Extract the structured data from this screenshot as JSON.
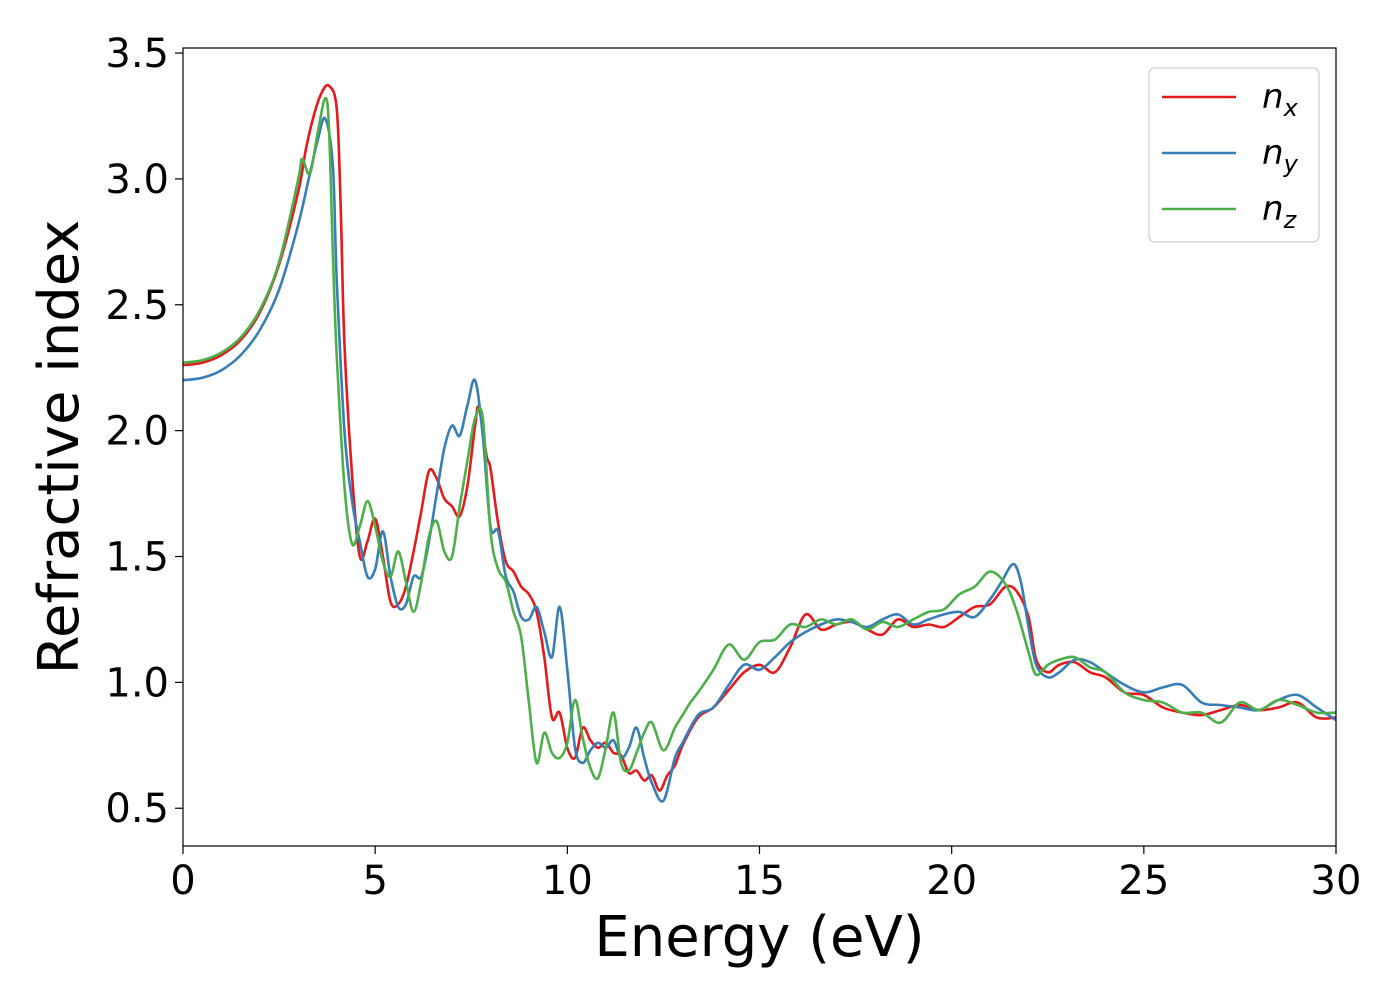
{
  "chart_data": {
    "type": "line",
    "xlabel": "Energy (eV)",
    "ylabel": "Refractive index",
    "xlim": [
      0,
      30
    ],
    "ylim": [
      0.35,
      3.52
    ],
    "xticks": [
      0,
      5,
      10,
      15,
      20,
      25,
      30
    ],
    "yticks": [
      0.5,
      1.0,
      1.5,
      2.0,
      2.5,
      3.0,
      3.5
    ],
    "grid": false,
    "legend_position": "top-right",
    "series": [
      {
        "name": "n",
        "subscript": "x",
        "color": "#e41a1c",
        "x": [
          0,
          0.5,
          1,
          1.5,
          2,
          2.5,
          3,
          3.2,
          3.4,
          3.6,
          3.8,
          4.0,
          4.1,
          4.2,
          4.4,
          4.6,
          4.8,
          5.0,
          5.2,
          5.4,
          5.6,
          5.8,
          6.0,
          6.2,
          6.4,
          6.6,
          6.8,
          7.0,
          7.2,
          7.4,
          7.6,
          7.7,
          7.9,
          8.0,
          8.2,
          8.4,
          8.6,
          8.8,
          9.0,
          9.2,
          9.4,
          9.6,
          9.8,
          10.0,
          10.2,
          10.4,
          10.6,
          10.8,
          11.0,
          11.2,
          11.4,
          11.6,
          11.8,
          12.0,
          12.2,
          12.4,
          12.6,
          12.8,
          13.0,
          13.4,
          13.8,
          14.2,
          14.6,
          15.0,
          15.4,
          15.8,
          16.2,
          16.6,
          17.0,
          17.4,
          17.8,
          18.2,
          18.6,
          19.0,
          19.4,
          19.8,
          20.2,
          20.6,
          21.0,
          21.4,
          21.7,
          22.0,
          22.2,
          22.5,
          22.8,
          23.2,
          23.6,
          24.0,
          24.5,
          25.0,
          25.5,
          26.0,
          26.5,
          27.0,
          27.5,
          28.0,
          28.5,
          29.0,
          29.5,
          30.0
        ],
        "values": [
          2.26,
          2.27,
          2.3,
          2.36,
          2.47,
          2.66,
          2.95,
          3.12,
          3.25,
          3.34,
          3.37,
          3.28,
          2.9,
          2.35,
          1.82,
          1.5,
          1.56,
          1.65,
          1.5,
          1.32,
          1.31,
          1.38,
          1.52,
          1.68,
          1.84,
          1.81,
          1.73,
          1.7,
          1.66,
          1.78,
          2.02,
          2.09,
          1.9,
          1.85,
          1.63,
          1.48,
          1.44,
          1.38,
          1.35,
          1.28,
          1.1,
          0.86,
          0.88,
          0.74,
          0.7,
          0.82,
          0.77,
          0.74,
          0.76,
          0.72,
          0.71,
          0.64,
          0.65,
          0.61,
          0.63,
          0.57,
          0.63,
          0.67,
          0.75,
          0.86,
          0.9,
          0.97,
          1.04,
          1.07,
          1.04,
          1.14,
          1.27,
          1.21,
          1.23,
          1.24,
          1.21,
          1.19,
          1.25,
          1.22,
          1.23,
          1.22,
          1.26,
          1.3,
          1.31,
          1.38,
          1.36,
          1.26,
          1.09,
          1.04,
          1.07,
          1.08,
          1.04,
          1.02,
          0.96,
          0.95,
          0.9,
          0.88,
          0.87,
          0.89,
          0.91,
          0.89,
          0.9,
          0.92,
          0.86,
          0.86
        ]
      },
      {
        "name": "n",
        "subscript": "y",
        "color": "#377eb8",
        "x": [
          0,
          0.5,
          1,
          1.5,
          2,
          2.5,
          3,
          3.3,
          3.5,
          3.7,
          3.9,
          4.0,
          4.2,
          4.4,
          4.6,
          4.8,
          5.0,
          5.2,
          5.4,
          5.6,
          5.8,
          6.0,
          6.2,
          6.4,
          6.6,
          6.8,
          7.0,
          7.2,
          7.4,
          7.6,
          7.8,
          8.0,
          8.2,
          8.4,
          8.6,
          8.8,
          9.0,
          9.2,
          9.4,
          9.6,
          9.8,
          10.0,
          10.2,
          10.4,
          10.6,
          10.8,
          11.0,
          11.2,
          11.4,
          11.6,
          11.8,
          12.0,
          12.2,
          12.5,
          12.8,
          13.0,
          13.4,
          13.8,
          14.2,
          14.6,
          15.0,
          15.4,
          15.8,
          16.2,
          16.6,
          17.0,
          17.4,
          17.8,
          18.2,
          18.6,
          19.0,
          19.4,
          19.8,
          20.2,
          20.6,
          21.0,
          21.3,
          21.6,
          21.8,
          22.0,
          22.2,
          22.5,
          22.8,
          23.2,
          23.6,
          24.0,
          24.5,
          25.0,
          25.5,
          26.0,
          26.5,
          27.0,
          27.5,
          28.0,
          28.5,
          29.0,
          29.5,
          30.0
        ],
        "values": [
          2.2,
          2.21,
          2.24,
          2.3,
          2.4,
          2.56,
          2.82,
          3.02,
          3.15,
          3.24,
          3.05,
          2.6,
          2.0,
          1.72,
          1.56,
          1.42,
          1.45,
          1.6,
          1.42,
          1.3,
          1.31,
          1.42,
          1.42,
          1.56,
          1.75,
          1.93,
          2.02,
          1.98,
          2.1,
          2.2,
          1.98,
          1.62,
          1.6,
          1.42,
          1.36,
          1.26,
          1.25,
          1.3,
          1.2,
          1.1,
          1.3,
          1.05,
          0.74,
          0.68,
          0.73,
          0.76,
          0.74,
          0.77,
          0.7,
          0.74,
          0.82,
          0.7,
          0.6,
          0.53,
          0.7,
          0.76,
          0.87,
          0.9,
          0.99,
          1.07,
          1.05,
          1.1,
          1.16,
          1.2,
          1.23,
          1.25,
          1.24,
          1.22,
          1.25,
          1.27,
          1.23,
          1.25,
          1.27,
          1.28,
          1.26,
          1.33,
          1.4,
          1.47,
          1.4,
          1.22,
          1.07,
          1.02,
          1.04,
          1.09,
          1.08,
          1.04,
          0.99,
          0.96,
          0.98,
          0.99,
          0.92,
          0.91,
          0.9,
          0.89,
          0.93,
          0.95,
          0.9,
          0.85
        ]
      },
      {
        "name": "n",
        "subscript": "z",
        "color": "#4daf4a",
        "x": [
          0,
          0.5,
          1,
          1.5,
          2,
          2.5,
          3,
          3.1,
          3.3,
          3.5,
          3.7,
          3.8,
          3.9,
          4.0,
          4.2,
          4.4,
          4.6,
          4.8,
          5.0,
          5.2,
          5.4,
          5.6,
          5.8,
          6.0,
          6.2,
          6.4,
          6.6,
          6.8,
          7.0,
          7.2,
          7.4,
          7.6,
          7.8,
          8.0,
          8.2,
          8.4,
          8.6,
          8.8,
          9.0,
          9.2,
          9.4,
          9.6,
          9.8,
          10.0,
          10.2,
          10.4,
          10.6,
          10.8,
          11.0,
          11.2,
          11.4,
          11.6,
          11.8,
          12.0,
          12.2,
          12.5,
          12.8,
          13.0,
          13.2,
          13.4,
          13.8,
          14.2,
          14.6,
          15.0,
          15.4,
          15.8,
          16.2,
          16.6,
          17.0,
          17.4,
          17.8,
          18.2,
          18.6,
          19.0,
          19.4,
          19.8,
          20.2,
          20.6,
          21.0,
          21.4,
          21.7,
          22.0,
          22.2,
          22.5,
          22.8,
          23.2,
          23.6,
          24.0,
          24.5,
          25.0,
          25.5,
          26.0,
          26.5,
          27.0,
          27.5,
          28.0,
          28.5,
          29.0,
          29.5,
          30.0
        ],
        "values": [
          2.27,
          2.28,
          2.31,
          2.37,
          2.48,
          2.67,
          3.0,
          3.08,
          3.02,
          3.18,
          3.32,
          3.2,
          2.7,
          2.3,
          1.78,
          1.55,
          1.62,
          1.72,
          1.62,
          1.48,
          1.42,
          1.52,
          1.4,
          1.28,
          1.4,
          1.58,
          1.64,
          1.52,
          1.5,
          1.7,
          1.88,
          2.05,
          2.05,
          1.6,
          1.45,
          1.4,
          1.28,
          1.18,
          0.92,
          0.68,
          0.8,
          0.72,
          0.7,
          0.76,
          0.93,
          0.78,
          0.66,
          0.62,
          0.74,
          0.88,
          0.68,
          0.65,
          0.72,
          0.8,
          0.84,
          0.73,
          0.82,
          0.87,
          0.92,
          0.96,
          1.05,
          1.15,
          1.09,
          1.16,
          1.17,
          1.23,
          1.22,
          1.25,
          1.23,
          1.25,
          1.21,
          1.24,
          1.22,
          1.25,
          1.28,
          1.29,
          1.35,
          1.38,
          1.44,
          1.39,
          1.28,
          1.12,
          1.03,
          1.07,
          1.09,
          1.1,
          1.06,
          1.04,
          0.96,
          0.93,
          0.92,
          0.88,
          0.88,
          0.84,
          0.92,
          0.89,
          0.93,
          0.91,
          0.88,
          0.88
        ]
      }
    ]
  }
}
